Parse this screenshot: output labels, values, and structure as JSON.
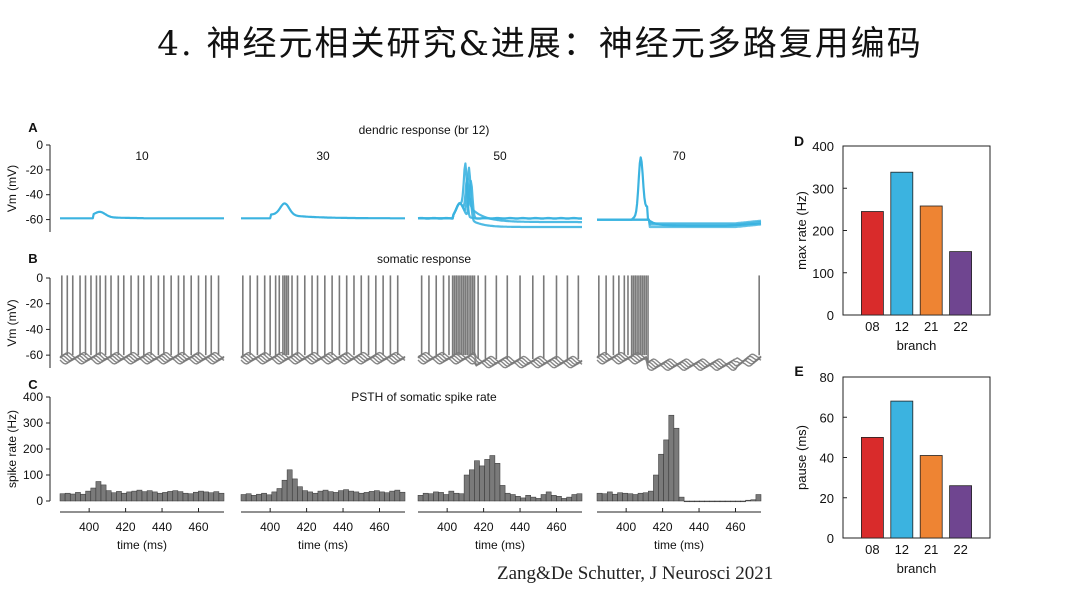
{
  "slide": {
    "title": "4. 神经元相关研究&进展：神经元多路复用编码",
    "citation": "Zang&De Schutter, J Neurosci 2021"
  },
  "colors": {
    "dendrite": "#3bb3e0",
    "soma": "#7a7a7a",
    "bar_08": "#d92b2b",
    "bar_12": "#3bb3e0",
    "bar_21": "#ee8433",
    "bar_22": "#6f4590"
  },
  "chart_data": [
    {
      "id": "A",
      "type": "line",
      "panel_label": "A",
      "title": "dendric response (br 12)",
      "ylabel": "Vm (mV)",
      "yticks": [
        "0",
        "-20",
        "-40",
        "-60"
      ],
      "ylim": [
        -70,
        0
      ],
      "subplot_labels": [
        "10",
        "30",
        "50",
        "70"
      ]
    },
    {
      "id": "B",
      "type": "line",
      "panel_label": "B",
      "title": "somatic response",
      "ylabel": "Vm (mV)",
      "yticks": [
        "0",
        "-20",
        "-40",
        "-60"
      ],
      "ylim": [
        -70,
        0
      ]
    },
    {
      "id": "C",
      "type": "bar",
      "panel_label": "C",
      "title": "PSTH of somatic spike rate",
      "ylabel": "spike rate (Hz)",
      "xlabel": "time (ms)",
      "yticks": [
        "0",
        "100",
        "200",
        "300",
        "400"
      ],
      "xticks": [
        "400",
        "420",
        "440",
        "460"
      ],
      "ylim": [
        0,
        400
      ],
      "xlim": [
        384,
        474
      ],
      "series": [
        {
          "name": "10",
          "values": [
            28,
            30,
            27,
            33,
            26,
            38,
            50,
            75,
            62,
            40,
            32,
            37,
            30,
            35,
            38,
            42,
            36,
            40,
            35,
            30,
            33,
            37,
            40,
            36,
            30,
            28,
            34,
            38,
            35,
            32,
            36,
            30
          ]
        },
        {
          "name": "30",
          "values": [
            25,
            28,
            22,
            26,
            30,
            24,
            35,
            48,
            80,
            120,
            85,
            55,
            40,
            35,
            30,
            38,
            42,
            36,
            33,
            40,
            44,
            38,
            35,
            30,
            33,
            37,
            40,
            35,
            32,
            38,
            42,
            34
          ]
        },
        {
          "name": "50",
          "values": [
            22,
            30,
            28,
            35,
            33,
            25,
            38,
            30,
            28,
            100,
            120,
            155,
            135,
            160,
            175,
            145,
            60,
            30,
            25,
            18,
            12,
            22,
            15,
            10,
            25,
            35,
            22,
            18,
            10,
            15,
            25,
            28
          ]
        },
        {
          "name": "70",
          "values": [
            30,
            28,
            35,
            26,
            32,
            30,
            28,
            25,
            30,
            32,
            38,
            100,
            180,
            235,
            330,
            280,
            15,
            0,
            0,
            0,
            0,
            0,
            0,
            0,
            0,
            0,
            0,
            0,
            0,
            3,
            5,
            25
          ]
        }
      ]
    },
    {
      "id": "D",
      "type": "bar",
      "panel_label": "D",
      "ylabel": "max rate (Hz)",
      "xlabel": "branch",
      "categories": [
        "08",
        "12",
        "21",
        "22"
      ],
      "values": [
        245,
        338,
        258,
        150
      ],
      "yticks": [
        "0",
        "100",
        "200",
        "300",
        "400"
      ],
      "ylim": [
        0,
        400
      ]
    },
    {
      "id": "E",
      "type": "bar",
      "panel_label": "E",
      "ylabel": "pause (ms)",
      "xlabel": "branch",
      "categories": [
        "08",
        "12",
        "21",
        "22"
      ],
      "values": [
        50,
        68,
        41,
        26
      ],
      "yticks": [
        "0",
        "20",
        "40",
        "60",
        "80"
      ],
      "ylim": [
        0,
        80
      ]
    }
  ]
}
